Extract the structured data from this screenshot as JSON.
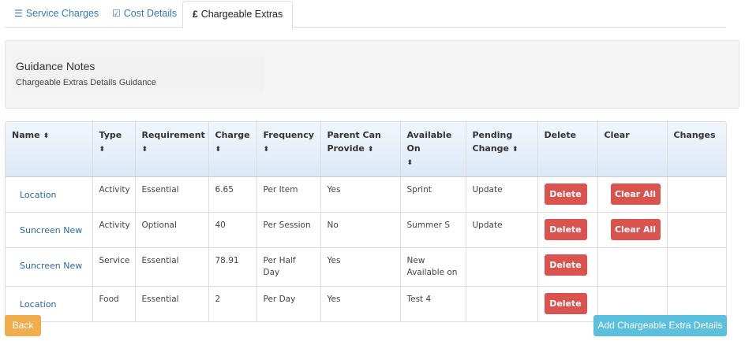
{
  "tabs": [
    {
      "label": "Service Charges",
      "icon": "list-icon"
    },
    {
      "label": "Cost Details",
      "icon": "check-square-icon"
    },
    {
      "label": "Chargeable Extras",
      "icon": "pound-icon",
      "active": true
    }
  ],
  "guidance": {
    "title": "Guidance Notes",
    "text": "Chargeable Extras Details Guidance"
  },
  "table": {
    "headers": [
      "Name",
      "Type",
      "Requirement",
      "Charge",
      "Frequency",
      "Parent Can Provide",
      "Available On",
      "Pending Change",
      "Delete",
      "Clear",
      "Changes"
    ],
    "rows": [
      {
        "name": "Location",
        "type": "Activity",
        "requirement": "Essential",
        "charge": "6.65",
        "frequency": "Per Item",
        "parent": "Yes",
        "available": "Sprint",
        "pending": "Update",
        "delete": "Delete",
        "clear": "Clear All"
      },
      {
        "name": "Suncreen New",
        "type": "Activity",
        "requirement": "Optional",
        "charge": "40",
        "frequency": "Per Session",
        "parent": "No",
        "available": "Summer S",
        "pending": "Update",
        "delete": "Delete",
        "clear": "Clear All"
      },
      {
        "name": "Suncreen New",
        "type": "Service",
        "requirement": "Essential",
        "charge": "78.91",
        "frequency": "Per Half Day",
        "parent": "Yes",
        "available": "New Available on",
        "pending": "",
        "delete": "Delete"
      },
      {
        "name": "Location",
        "type": "Food",
        "requirement": "Essential",
        "charge": "2",
        "frequency": "Per Day",
        "parent": "Yes",
        "available": "Test 4",
        "pending": "",
        "delete": "Delete"
      }
    ]
  },
  "buttons": {
    "back": "Back",
    "add": "Add Chargeable Extra Details"
  },
  "colors": {
    "link": "#337ab7",
    "danger": "#d9534f",
    "warning": "#f0ad4e",
    "info": "#5bc0de"
  }
}
